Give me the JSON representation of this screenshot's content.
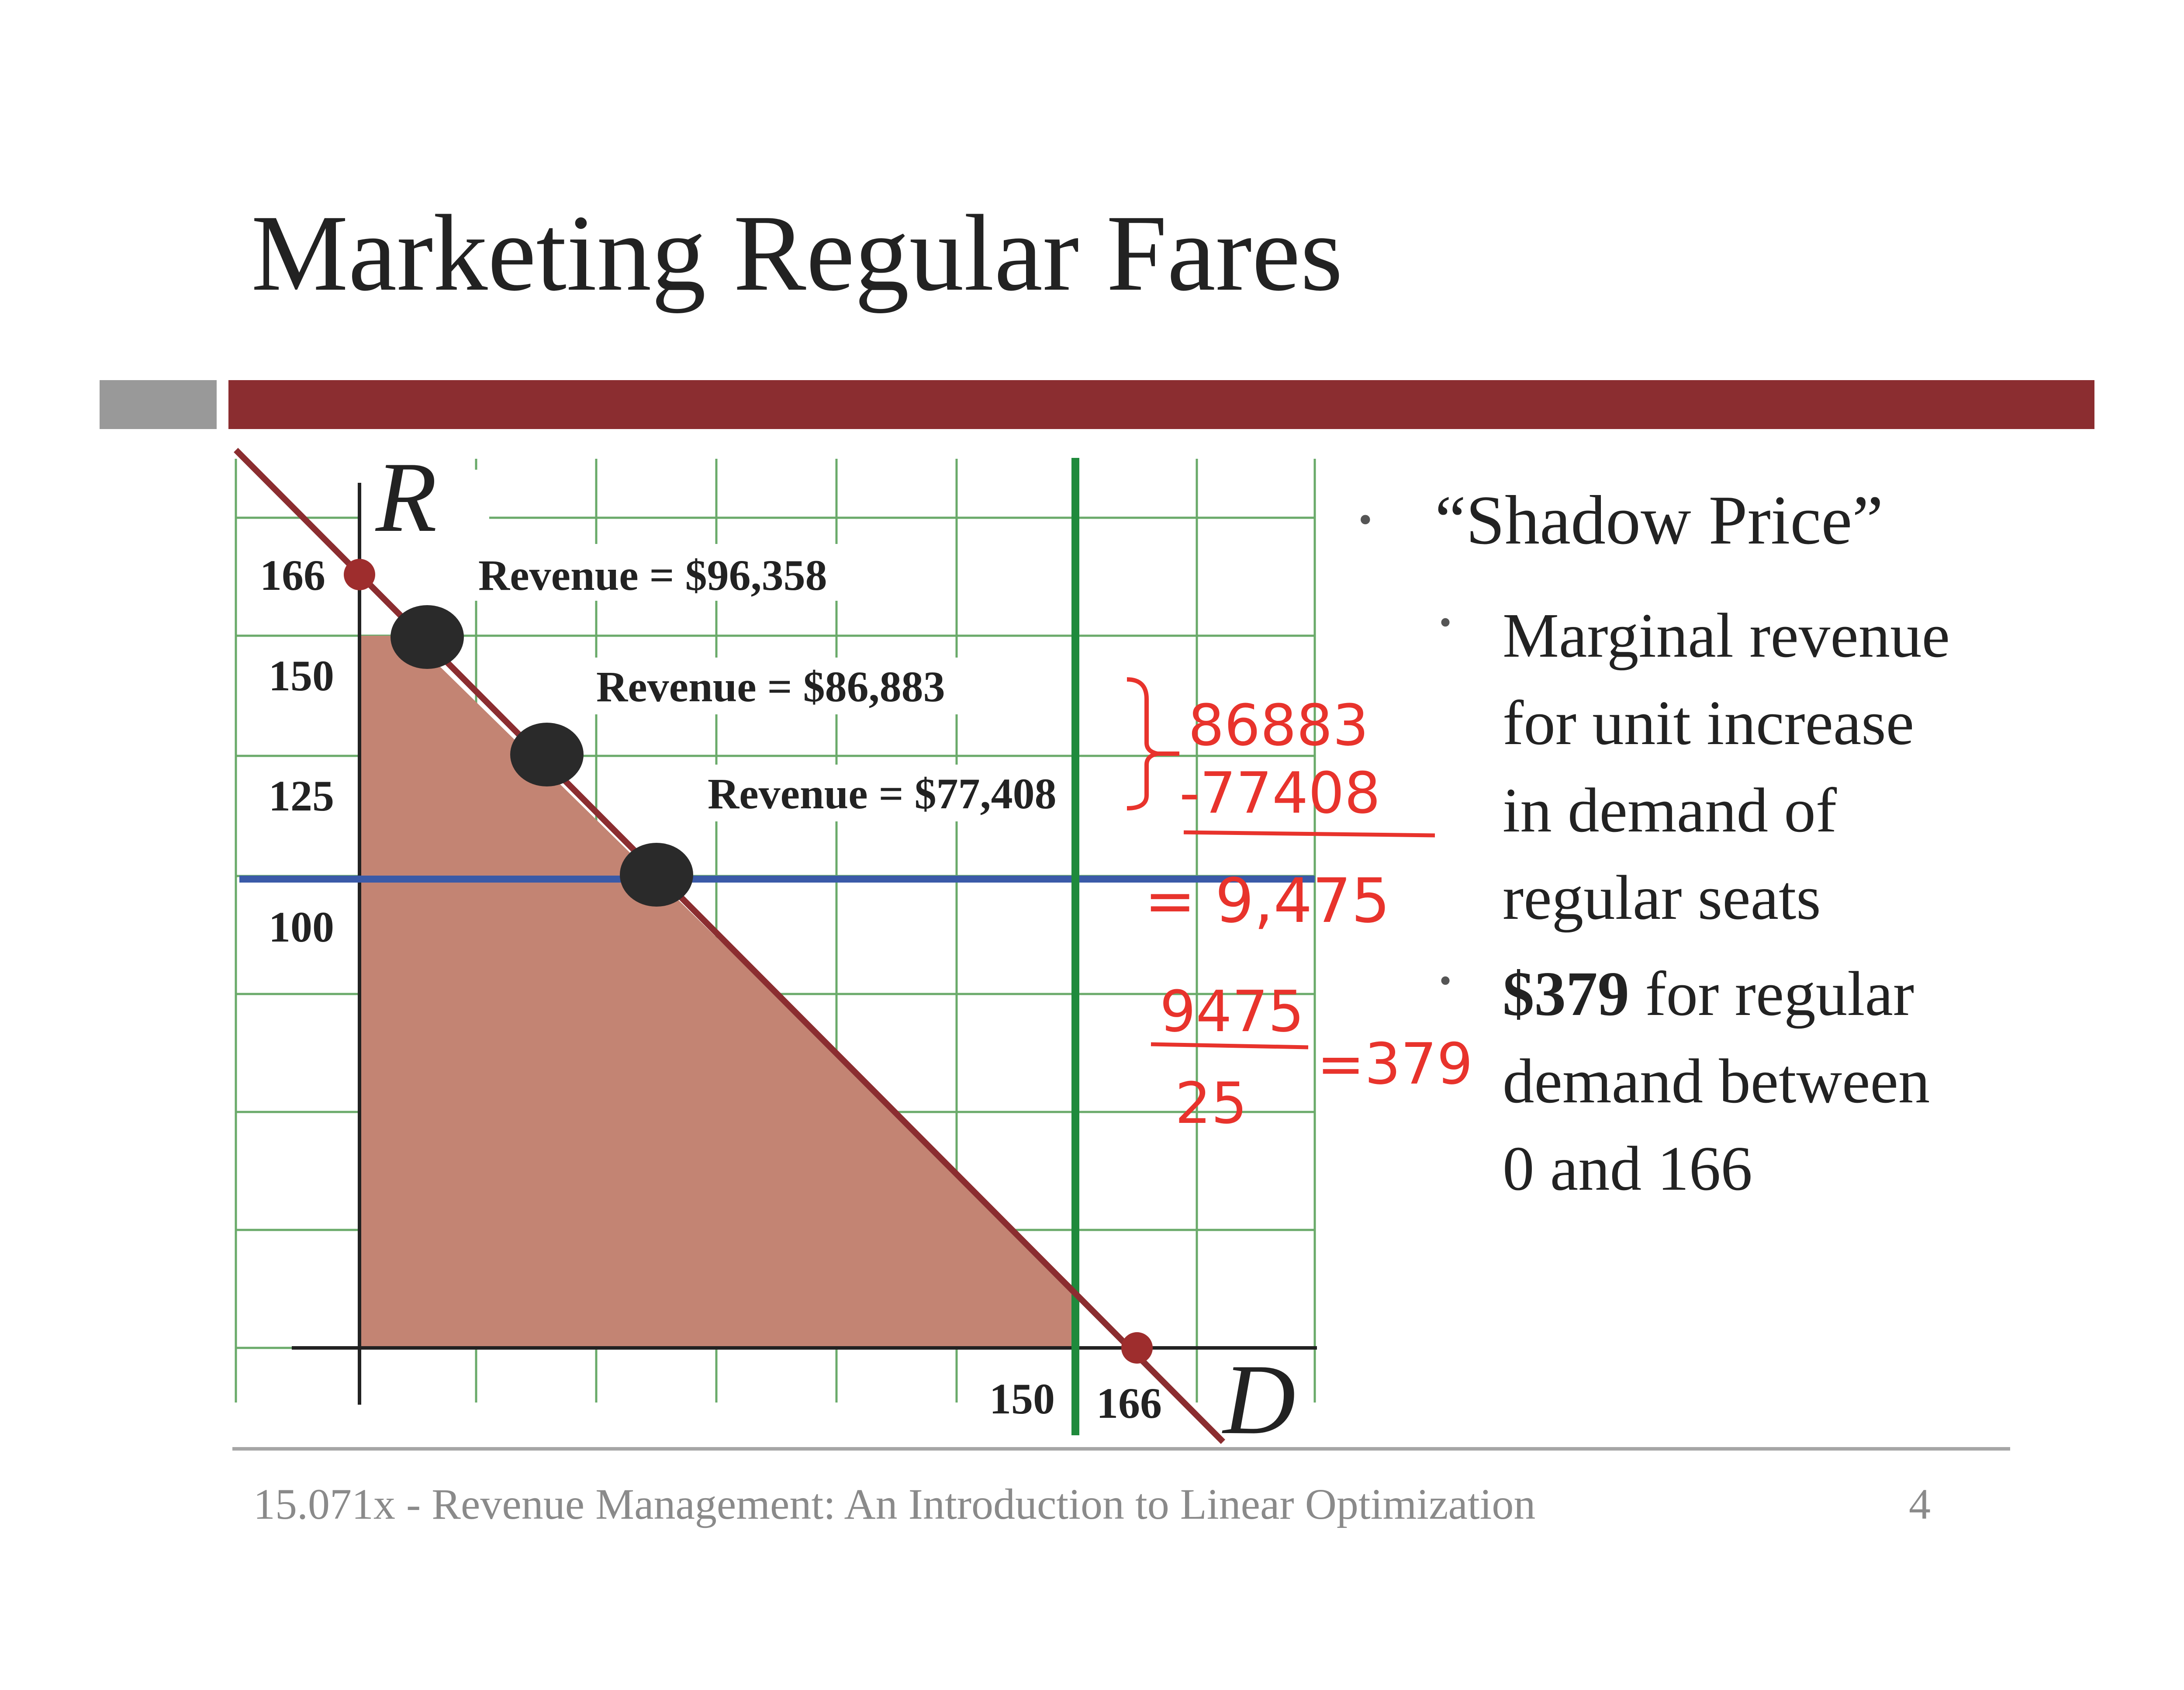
{
  "slide": {
    "title": "Marketing Regular Fares",
    "footer": "15.071x - Revenue Management: An Introduction to Linear Optimization",
    "page_number": "4"
  },
  "diagram": {
    "axis_y_label": "R",
    "axis_x_label": "D",
    "y_ticks": [
      "166",
      "150",
      "125",
      "100"
    ],
    "x_ticks": [
      "150",
      "166"
    ],
    "revenue_labels": [
      "Revenue = $96,358",
      "Revenue = $86,883",
      "Revenue = $77,408"
    ],
    "colors": {
      "feasible_region": "#c38473",
      "demand_line": "#8b2d30",
      "vertical_constraint": "#1f8a3c",
      "horizontal_constraint": "#3a5aa8",
      "grid": "#6aaa6a",
      "handwriting": "#e8332c"
    }
  },
  "annotations": {
    "line1": "86883",
    "line2": "-77408",
    "line3": "= 9,475",
    "numerator": "9475",
    "denominator": "25",
    "result": "=379"
  },
  "bullets": {
    "main": "“Shadow Price”",
    "sub1": [
      "Marginal revenue",
      "for unit increase",
      "in demand of",
      "regular seats"
    ],
    "sub2_bold": "$379",
    "sub2_rest": " for regular",
    "sub2_lines": [
      "demand between",
      "0 and 166"
    ]
  }
}
